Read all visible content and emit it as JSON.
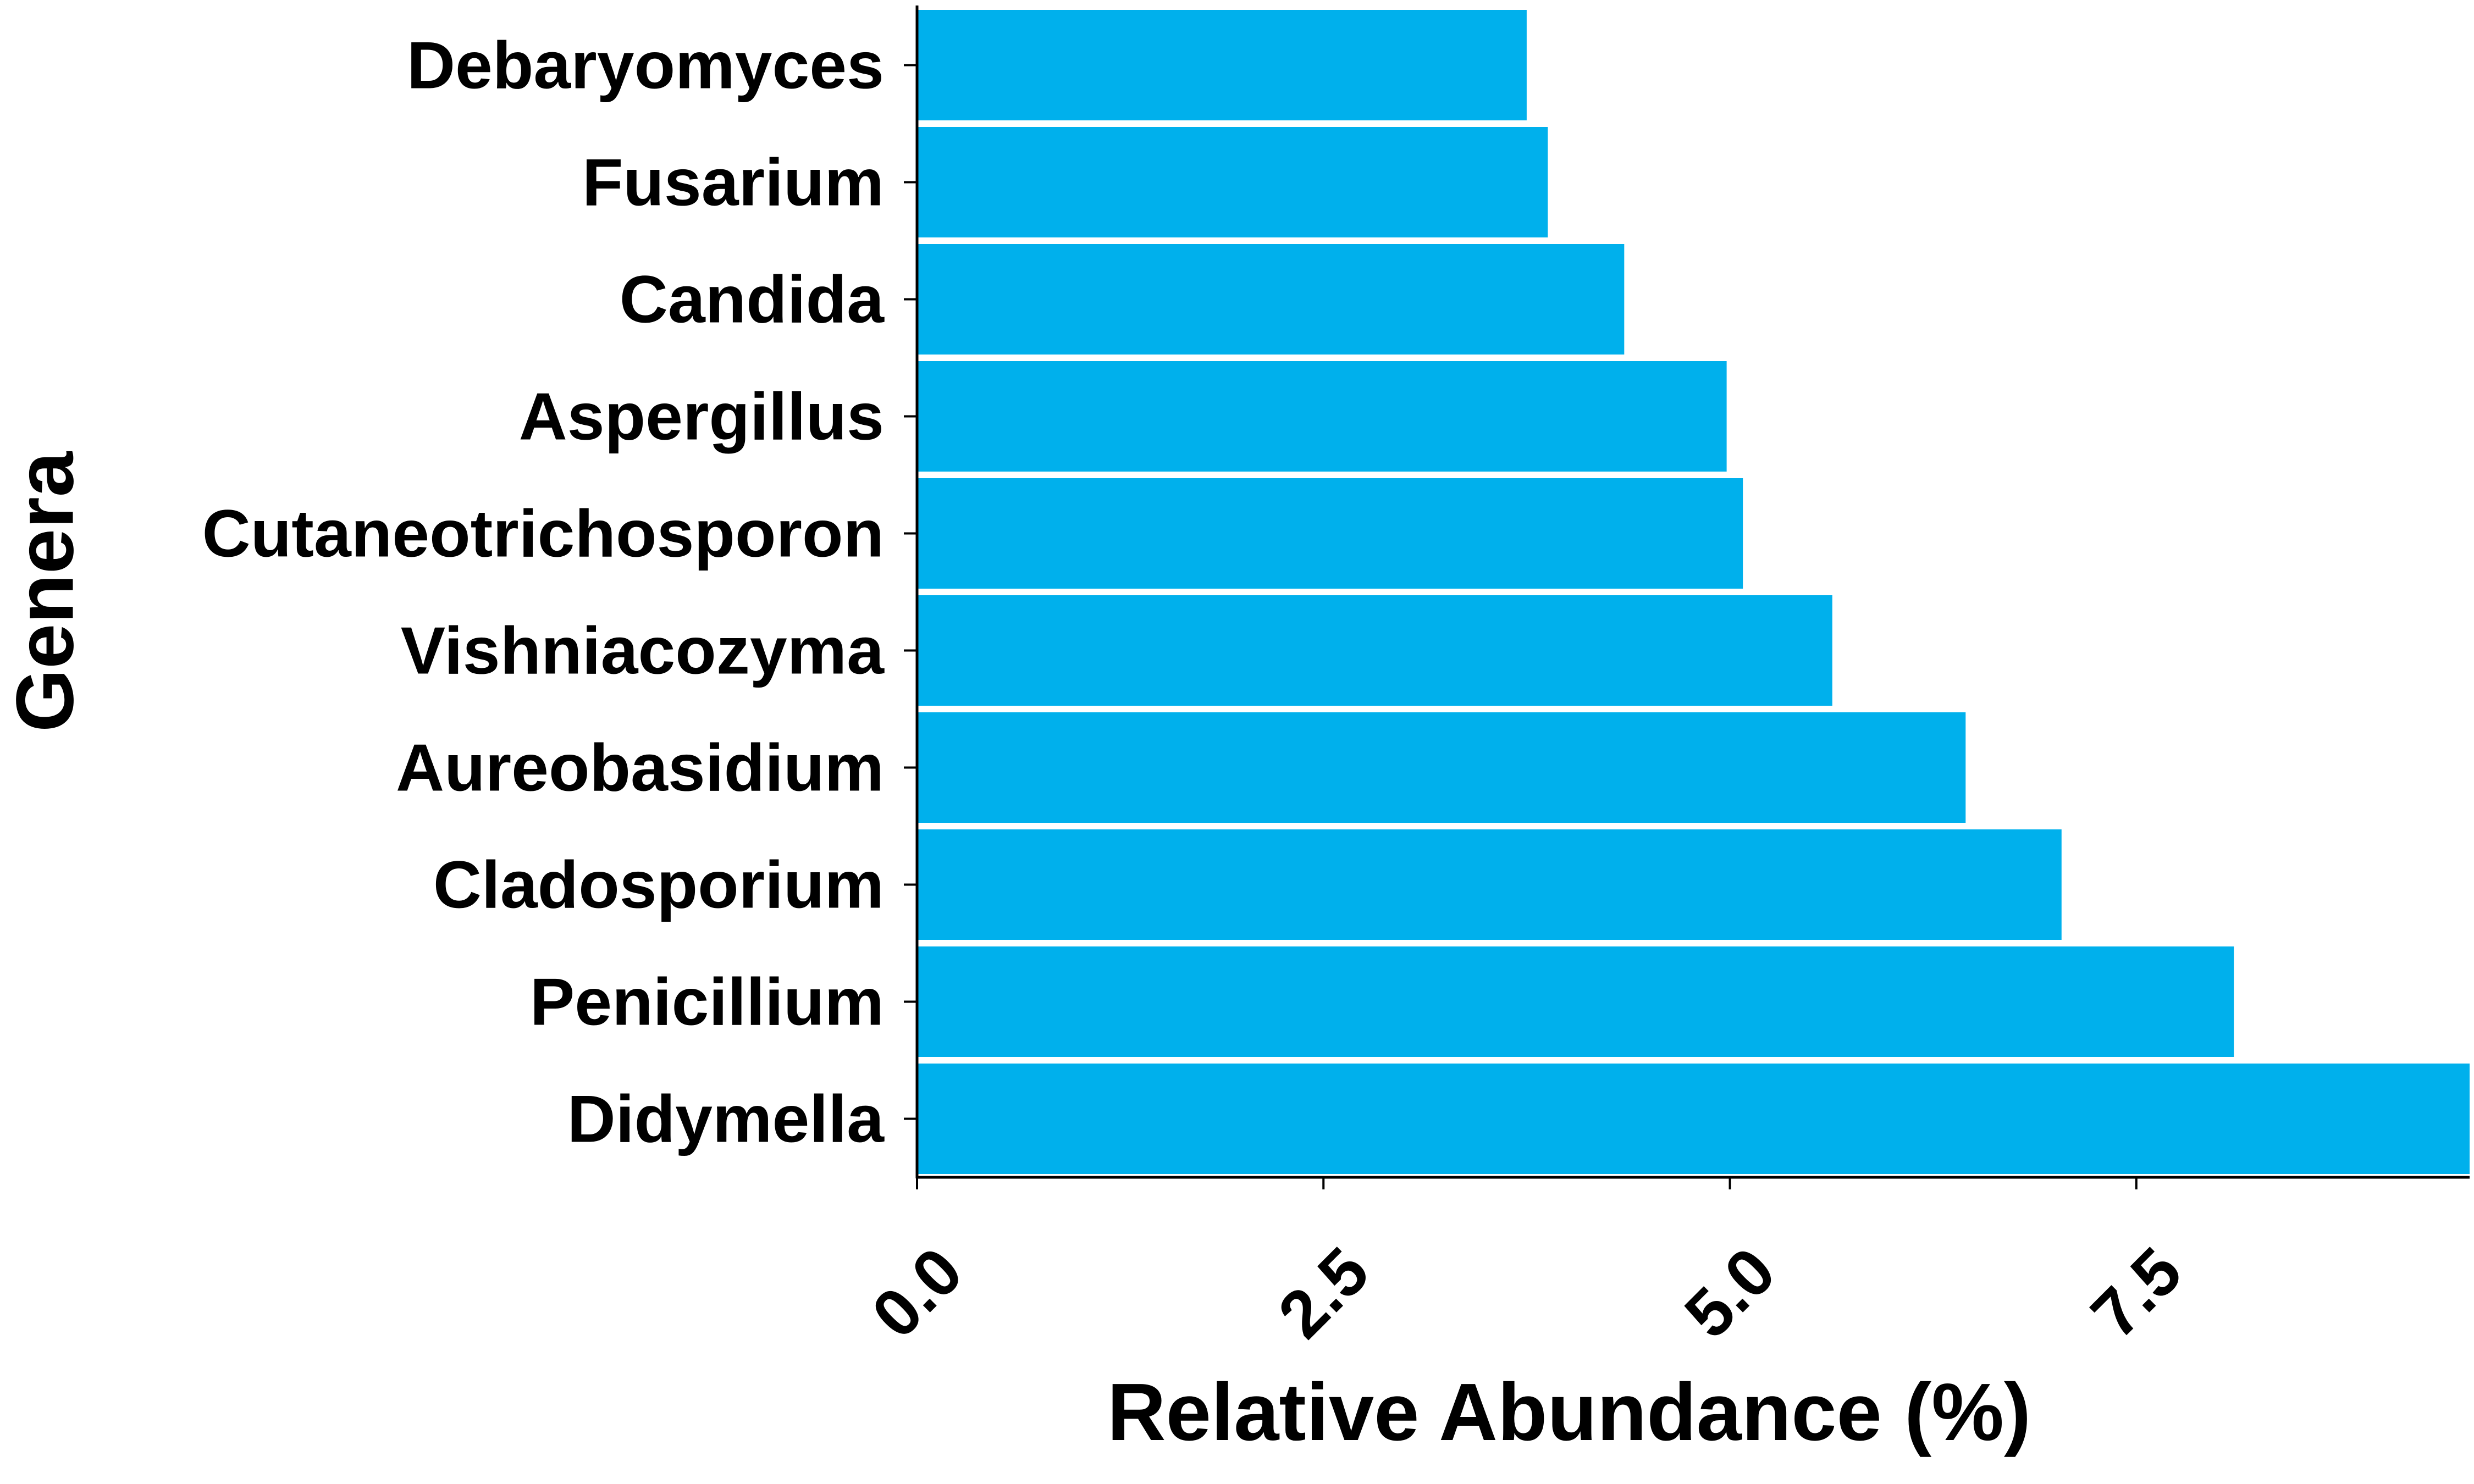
{
  "chart_data": {
    "type": "bar",
    "orientation": "horizontal",
    "categories": [
      "Debaryomyces",
      "Fusarium",
      "Candida",
      "Aspergillus",
      "Cutaneotrichosporon",
      "Vishniacozyma",
      "Aureobasidium",
      "Cladosporium",
      "Penicillium",
      "Didymella"
    ],
    "values": [
      3.75,
      3.88,
      4.35,
      4.98,
      5.08,
      5.63,
      6.45,
      7.04,
      8.1,
      9.55
    ],
    "xlabel": "Relative Abundance (%)",
    "ylabel": "Genera",
    "xlim": [
      0,
      9.55
    ],
    "xticks": [
      0.0,
      2.5,
      5.0,
      7.5
    ],
    "xtick_labels": [
      "0.0",
      "2.5",
      "5.0",
      "7.5"
    ],
    "grid": false,
    "legend": "none",
    "bar_color": "#00b0ec"
  }
}
